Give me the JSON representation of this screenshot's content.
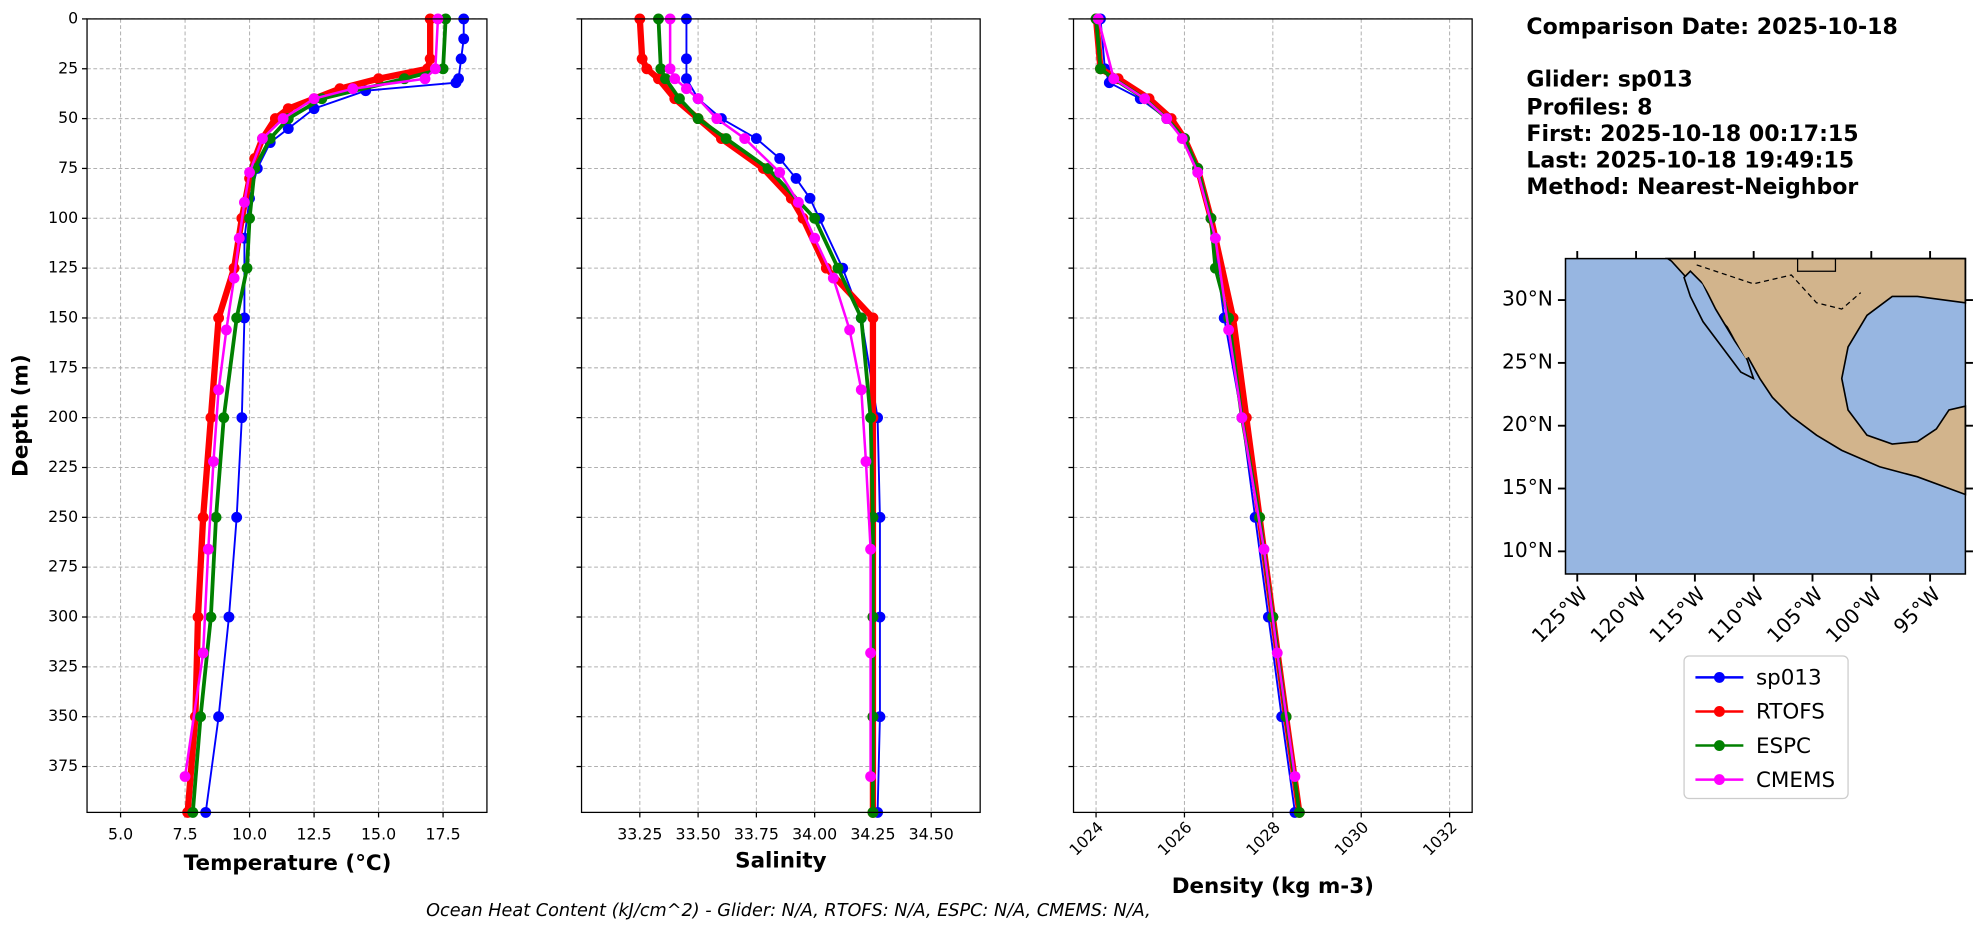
{
  "chart_data": [
    {
      "type": "line",
      "xlabel": "Temperature (°C)",
      "ylabel": "Depth (m)",
      "xlim": [
        3.7,
        19.2
      ],
      "xticks": [
        {
          "value": 5,
          "label": "5.0"
        },
        {
          "value": 7.5,
          "label": "7.5"
        },
        {
          "value": 10,
          "label": "10.0"
        },
        {
          "value": 12.5,
          "label": "12.5"
        },
        {
          "value": 15,
          "label": "15.0"
        },
        {
          "value": 17.5,
          "label": "17.5"
        }
      ],
      "ylim": [
        0,
        398
      ],
      "y_inverted": true,
      "yticks": [
        0,
        25,
        50,
        75,
        100,
        125,
        150,
        175,
        200,
        225,
        250,
        275,
        300,
        325,
        350,
        375
      ],
      "show_ytick_labels": true,
      "grid": true,
      "xtick_rotation": 0,
      "series": [
        {
          "name": "sp013",
          "color": "#0000ff",
          "linewidth": 1.5,
          "depth": [
            0,
            10,
            20,
            30,
            32,
            36,
            45,
            55,
            62,
            75,
            90,
            110,
            150,
            200,
            250,
            300,
            350,
            398
          ],
          "values": [
            18.3,
            18.3,
            18.2,
            18.1,
            18.0,
            14.5,
            12.5,
            11.5,
            10.8,
            10.3,
            10.0,
            9.8,
            9.8,
            9.7,
            9.5,
            9.2,
            8.8,
            8.3
          ]
        },
        {
          "name": "RTOFS",
          "color": "#ff0000",
          "linewidth": 5,
          "depth": [
            0,
            20,
            25,
            30,
            35,
            40,
            45,
            50,
            60,
            70,
            80,
            100,
            125,
            150,
            200,
            250,
            300,
            350,
            398
          ],
          "values": [
            17.0,
            17.0,
            16.9,
            15.0,
            13.5,
            12.5,
            11.5,
            11.0,
            10.5,
            10.2,
            10.0,
            9.7,
            9.4,
            8.8,
            8.5,
            8.2,
            8.0,
            7.9,
            7.6
          ]
        },
        {
          "name": "ESPC",
          "color": "#008000",
          "linewidth": 3,
          "depth": [
            0,
            25,
            30,
            40,
            50,
            60,
            75,
            100,
            125,
            150,
            200,
            250,
            300,
            350,
            398
          ],
          "values": [
            17.6,
            17.5,
            16.0,
            12.8,
            11.5,
            10.8,
            10.2,
            10.0,
            9.9,
            9.5,
            9.0,
            8.7,
            8.5,
            8.1,
            7.8
          ]
        },
        {
          "name": "CMEMS",
          "color": "#ff00ff",
          "linewidth": 2,
          "depth": [
            0,
            25,
            30,
            35,
            40,
            50,
            60,
            77,
            92,
            110,
            130,
            156,
            186,
            222,
            266,
            318,
            380
          ],
          "values": [
            17.3,
            17.2,
            16.8,
            14.0,
            12.5,
            11.3,
            10.5,
            10.0,
            9.8,
            9.6,
            9.4,
            9.1,
            8.8,
            8.6,
            8.4,
            8.2,
            7.5
          ]
        }
      ]
    },
    {
      "type": "line",
      "xlabel": "Salinity",
      "xlim": [
        33.0,
        34.71
      ],
      "xticks": [
        {
          "value": 33.25,
          "label": "33.25"
        },
        {
          "value": 33.5,
          "label": "33.50"
        },
        {
          "value": 33.75,
          "label": "33.75"
        },
        {
          "value": 34.0,
          "label": "34.00"
        },
        {
          "value": 34.25,
          "label": "34.25"
        },
        {
          "value": 34.5,
          "label": "34.50"
        }
      ],
      "ylim": [
        0,
        398
      ],
      "y_inverted": true,
      "yticks": [
        0,
        25,
        50,
        75,
        100,
        125,
        150,
        175,
        200,
        225,
        250,
        275,
        300,
        325,
        350,
        375
      ],
      "show_ytick_labels": false,
      "grid": true,
      "xtick_rotation": 0,
      "series": [
        {
          "name": "sp013",
          "color": "#0000ff",
          "linewidth": 1.5,
          "depth": [
            0,
            20,
            30,
            40,
            50,
            60,
            70,
            80,
            90,
            100,
            125,
            150,
            200,
            250,
            300,
            350,
            398
          ],
          "values": [
            33.45,
            33.45,
            33.45,
            33.5,
            33.6,
            33.75,
            33.85,
            33.92,
            33.98,
            34.02,
            34.12,
            34.2,
            34.27,
            34.28,
            34.28,
            34.28,
            34.27
          ]
        },
        {
          "name": "RTOFS",
          "color": "#ff0000",
          "linewidth": 5,
          "depth": [
            0,
            20,
            25,
            30,
            40,
            50,
            60,
            75,
            90,
            100,
            125,
            150,
            200,
            250,
            300,
            350,
            398
          ],
          "values": [
            33.25,
            33.26,
            33.28,
            33.33,
            33.4,
            33.5,
            33.6,
            33.78,
            33.9,
            33.95,
            34.05,
            34.25,
            34.25,
            34.25,
            34.25,
            34.25,
            34.25
          ]
        },
        {
          "name": "ESPC",
          "color": "#008000",
          "linewidth": 3,
          "depth": [
            0,
            25,
            30,
            40,
            50,
            60,
            75,
            100,
            125,
            150,
            200,
            250,
            300,
            350,
            398
          ],
          "values": [
            33.33,
            33.34,
            33.36,
            33.42,
            33.5,
            33.62,
            33.8,
            34.0,
            34.1,
            34.2,
            34.24,
            34.25,
            34.25,
            34.25,
            34.25
          ]
        },
        {
          "name": "CMEMS",
          "color": "#ff00ff",
          "linewidth": 2,
          "depth": [
            0,
            25,
            30,
            35,
            40,
            50,
            60,
            77,
            92,
            110,
            130,
            156,
            186,
            222,
            266,
            318,
            380
          ],
          "values": [
            33.38,
            33.38,
            33.4,
            33.45,
            33.5,
            33.58,
            33.7,
            33.85,
            33.93,
            34.0,
            34.08,
            34.15,
            34.2,
            34.22,
            34.24,
            34.24,
            34.24
          ]
        }
      ]
    },
    {
      "type": "line",
      "xlabel": "Density (kg m-3)",
      "xlim": [
        1023.49,
        1032.51
      ],
      "xticks": [
        1024,
        1026,
        1028,
        1030,
        1032
      ],
      "ylim": [
        0,
        398
      ],
      "y_inverted": true,
      "yticks": [
        0,
        25,
        50,
        75,
        100,
        125,
        150,
        175,
        200,
        225,
        250,
        275,
        300,
        325,
        350,
        375
      ],
      "show_ytick_labels": false,
      "grid": true,
      "xtick_rotation": 45,
      "series": [
        {
          "name": "sp013",
          "color": "#0000ff",
          "linewidth": 1.5,
          "depth": [
            0,
            25,
            32,
            40,
            50,
            60,
            75,
            100,
            150,
            200,
            250,
            300,
            350,
            398
          ],
          "values": [
            1024.1,
            1024.2,
            1024.3,
            1025.0,
            1025.6,
            1026.0,
            1026.3,
            1026.6,
            1026.9,
            1027.3,
            1027.6,
            1027.9,
            1028.2,
            1028.5
          ]
        },
        {
          "name": "RTOFS",
          "color": "#ff0000",
          "linewidth": 5,
          "depth": [
            0,
            25,
            30,
            40,
            50,
            60,
            75,
            100,
            150,
            200,
            250,
            300,
            350,
            398
          ],
          "values": [
            1024.0,
            1024.1,
            1024.5,
            1025.2,
            1025.7,
            1026.0,
            1026.3,
            1026.6,
            1027.1,
            1027.4,
            1027.7,
            1028.0,
            1028.3,
            1028.6
          ]
        },
        {
          "name": "ESPC",
          "color": "#008000",
          "linewidth": 3,
          "depth": [
            0,
            25,
            30,
            40,
            50,
            60,
            75,
            100,
            125,
            150,
            200,
            250,
            300,
            350,
            398
          ],
          "values": [
            1024.0,
            1024.1,
            1024.4,
            1025.1,
            1025.6,
            1026.0,
            1026.3,
            1026.6,
            1026.7,
            1027.0,
            1027.3,
            1027.7,
            1028.0,
            1028.3,
            1028.6
          ]
        },
        {
          "name": "CMEMS",
          "color": "#ff00ff",
          "linewidth": 2,
          "depth": [
            0,
            30,
            40,
            50,
            60,
            77,
            110,
            156,
            200,
            266,
            318,
            380
          ],
          "values": [
            1024.05,
            1024.4,
            1025.1,
            1025.6,
            1025.95,
            1026.3,
            1026.7,
            1027.0,
            1027.3,
            1027.8,
            1028.1,
            1028.5
          ]
        }
      ]
    }
  ],
  "info": [
    "Comparison Date: 2025-10-18",
    "Glider: sp013",
    "Profiles: 8",
    "First: 2025-10-18 00:17:15",
    "Last: 2025-10-18 19:49:15",
    "Method: Nearest-Neighbor"
  ],
  "map": {
    "lonlim": [
      -126,
      -92
    ],
    "latlim": [
      8.2,
      33.3
    ],
    "lat_ticks": [
      {
        "value": 30,
        "label": "30°N"
      },
      {
        "value": 25,
        "label": "25°N"
      },
      {
        "value": 20,
        "label": "20°N"
      },
      {
        "value": 15,
        "label": "15°N"
      },
      {
        "value": 10,
        "label": "10°N"
      }
    ],
    "lon_ticks": [
      {
        "value": -125,
        "label": "125°W"
      },
      {
        "value": -120,
        "label": "120°W"
      },
      {
        "value": -115,
        "label": "115°W"
      },
      {
        "value": -110,
        "label": "110°W"
      },
      {
        "value": -105,
        "label": "105°W"
      },
      {
        "value": -100,
        "label": "100°W"
      },
      {
        "value": -95,
        "label": "95°W"
      }
    ]
  },
  "footer": "Ocean Heat Content (kJ/cm^2) - Glider: N/A,  RTOFS: N/A,  ESPC: N/A,  CMEMS: N/A,"
}
